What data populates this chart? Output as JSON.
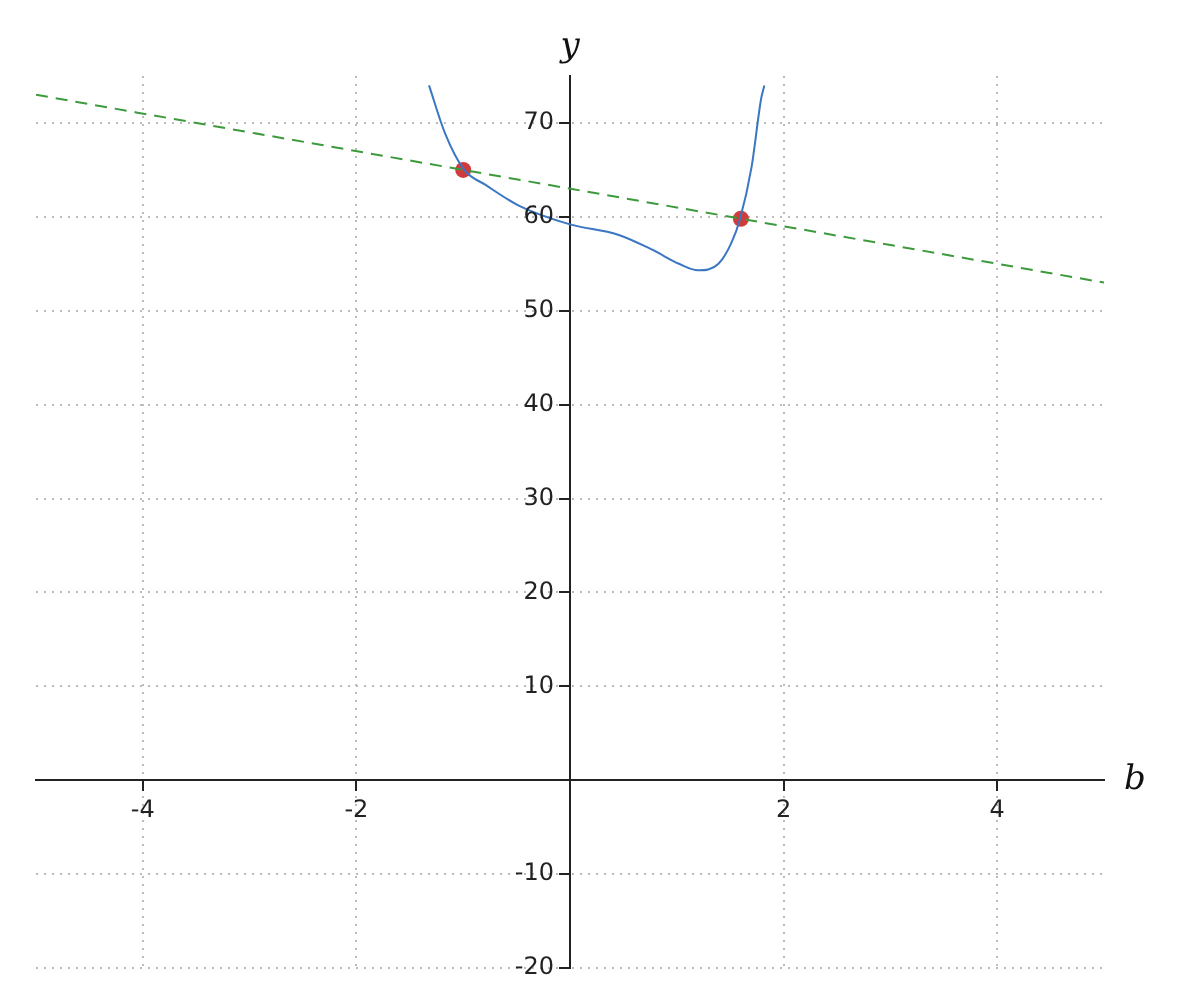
{
  "chart_data": {
    "type": "line",
    "xlabel": "b",
    "ylabel": "y",
    "xlim": [
      -5,
      5
    ],
    "ylim": [
      -20,
      75
    ],
    "xticks": [
      -4,
      -2,
      2,
      4
    ],
    "yticks": [
      -20,
      -10,
      10,
      20,
      30,
      40,
      50,
      60,
      70
    ],
    "grid": true,
    "legend": false,
    "series": [
      {
        "color": "#3b76c3",
        "marker": "none",
        "line_style": "solid",
        "x": [
          -1.32,
          -1.17,
          -0.99,
          -0.79,
          -0.48,
          0,
          0.45,
          0.77,
          1.02,
          1.2,
          1.39,
          1.51,
          1.59,
          1.7,
          1.79,
          1.82
        ],
        "values": [
          74,
          68.9,
          65,
          63.4,
          61.2,
          59.2,
          58.1,
          56.5,
          55,
          54.3,
          55,
          57.2,
          59.7,
          65.3,
          72.6,
          74
        ]
      },
      {
        "color": "#3c9a3c",
        "marker": "none",
        "line_style": "dashed",
        "x": [
          -5,
          5
        ],
        "values": [
          73,
          53
        ]
      },
      {
        "type": "scatter",
        "color": "#d03b3b",
        "marker": "circle",
        "x": [
          -1,
          1.6
        ],
        "values": [
          65,
          59.8
        ]
      }
    ]
  }
}
